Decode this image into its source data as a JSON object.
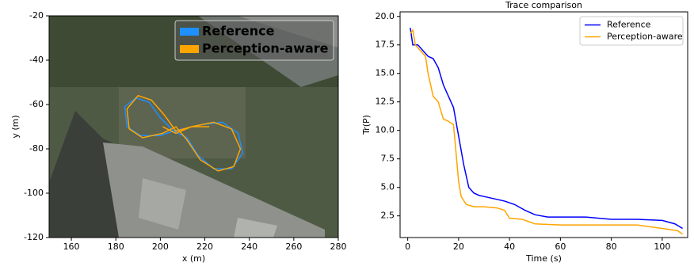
{
  "chart_data": [
    {
      "type": "line",
      "xlabel": "x (m)",
      "ylabel": "y (m)",
      "xlim": [
        150,
        280
      ],
      "xticks": [
        160,
        180,
        200,
        220,
        240,
        260,
        280
      ],
      "ylim": [
        -120,
        -20
      ],
      "yticks": [
        -120,
        -100,
        -80,
        -60,
        -40,
        -20
      ],
      "legend": "upper right",
      "series": [
        {
          "name": "Reference",
          "color": "#1e90ff",
          "x": [
            206,
            200,
            195,
            189,
            184,
            185,
            191,
            200,
            206,
            212,
            217,
            224,
            232,
            237,
            235,
            228,
            219,
            210,
            206
          ],
          "values": [
            -72,
            -66,
            -59,
            -57,
            -61,
            -70,
            -74,
            -74,
            -72,
            -75,
            -83,
            -89,
            -89,
            -82,
            -73,
            -68,
            -69,
            -71,
            -72
          ]
        },
        {
          "name": "Perception-aware",
          "color": "#ffa500",
          "x": [
            222,
            214,
            207,
            202,
            196,
            190,
            185,
            186,
            192,
            201,
            207,
            212,
            218,
            226,
            233,
            236,
            232,
            224,
            214,
            207,
            201
          ],
          "values": [
            -70,
            -70,
            -72,
            -65,
            -58,
            -56,
            -62,
            -71,
            -75,
            -73,
            -70,
            -76,
            -85,
            -90,
            -88,
            -80,
            -71,
            -68,
            -70,
            -73,
            -70
          ]
        }
      ]
    },
    {
      "type": "line",
      "title": "Trace comparison",
      "xlabel": "Time (s)",
      "ylabel": "Tr(P)",
      "xlim": [
        -3,
        110
      ],
      "xticks": [
        0,
        20,
        40,
        60,
        80,
        100
      ],
      "ylim": [
        0.6,
        20.4
      ],
      "yticks": [
        2.5,
        {
          "value": 5,
          "label": "5.0"
        },
        7.5,
        {
          "value": 10,
          "label": "10.0"
        },
        12.5,
        {
          "value": 15,
          "label": "15.0"
        },
        17.5,
        {
          "value": 20,
          "label": "20.0"
        }
      ],
      "legend": "upper right",
      "series": [
        {
          "name": "Reference",
          "color": "#0000ff",
          "x": [
            1,
            2,
            4,
            6,
            8,
            10,
            12,
            14,
            16,
            18,
            20,
            22,
            24,
            26,
            28,
            30,
            34,
            38,
            42,
            46,
            50,
            55,
            60,
            70,
            80,
            90,
            100,
            105,
            108
          ],
          "values": [
            19,
            17.5,
            17.5,
            17,
            16.5,
            16.3,
            15.5,
            14,
            13,
            12,
            9.5,
            7,
            5,
            4.5,
            4.3,
            4.2,
            4,
            3.8,
            3.5,
            3,
            2.6,
            2.4,
            2.4,
            2.4,
            2.2,
            2.2,
            2.1,
            1.8,
            1.4
          ]
        },
        {
          "name": "Perception-aware",
          "color": "#ffa500",
          "x": [
            1,
            2,
            3,
            5,
            7,
            8,
            10,
            12,
            14,
            16,
            18,
            19,
            20,
            21,
            23,
            26,
            30,
            35,
            38,
            40,
            45,
            50,
            60,
            70,
            80,
            90,
            100,
            106,
            108
          ],
          "values": [
            18.5,
            18.8,
            17.5,
            17,
            16.5,
            15,
            13,
            12.5,
            11,
            10.8,
            10.5,
            8,
            5.5,
            4.2,
            3.5,
            3.3,
            3.3,
            3.2,
            3,
            2.3,
            2.2,
            1.8,
            1.7,
            1.7,
            1.7,
            1.7,
            1.4,
            1.2,
            0.9
          ]
        }
      ]
    }
  ]
}
